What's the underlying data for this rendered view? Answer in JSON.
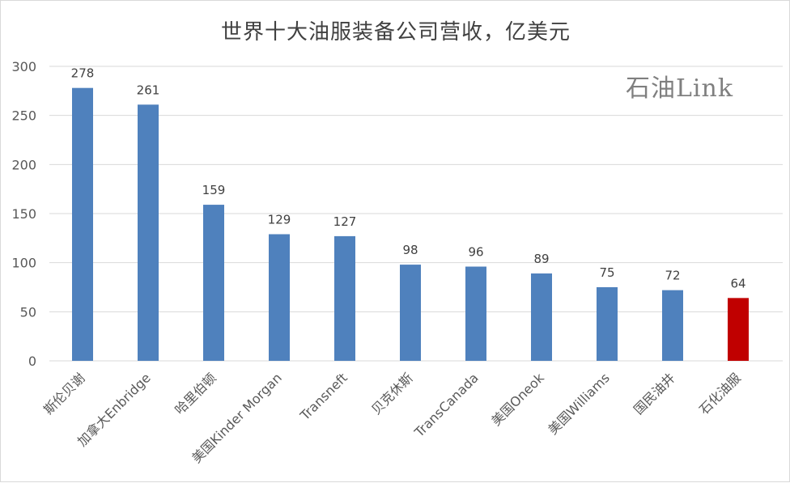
{
  "chart_data": {
    "type": "bar",
    "title": "世界十大油服装备公司营收，亿美元",
    "watermark": "石油Link",
    "categories": [
      "斯伦贝谢",
      "加拿大Enbridge",
      "哈里伯顿",
      "美国Kinder Morgan",
      "Transneft",
      "贝克休斯",
      "TransCanada",
      "美国Oneok",
      "美国Williams",
      "国民油井",
      "石化油服"
    ],
    "values": [
      278,
      261,
      159,
      129,
      127,
      98,
      96,
      89,
      75,
      72,
      64
    ],
    "ylim": [
      0,
      300
    ],
    "yticks": [
      0,
      50,
      100,
      150,
      200,
      250,
      300
    ],
    "xlabel": "",
    "ylabel": "",
    "grid": true,
    "legend": "none",
    "colors": {
      "default_bar": "#4f81bd",
      "highlight_bar": "#c00000",
      "highlight_index": 10,
      "gridline": "#d9d9d9",
      "text": "#595959"
    }
  }
}
